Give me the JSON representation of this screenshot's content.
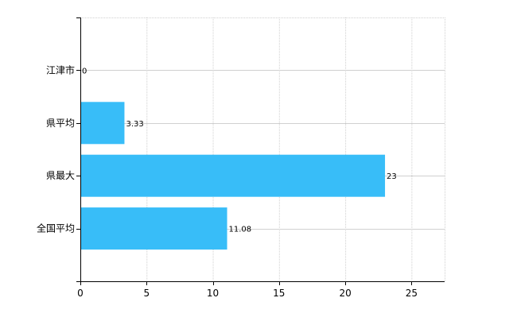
{
  "chart_data": {
    "type": "bar",
    "orientation": "horizontal",
    "categories": [
      "江津市",
      "県平均",
      "県最大",
      "全国平均"
    ],
    "values": [
      0,
      3.33,
      23,
      11.08
    ],
    "data_labels": [
      "0",
      "3.33",
      "23",
      "11.08"
    ],
    "title": "",
    "xlabel": "",
    "ylabel": "",
    "xlim": [
      0,
      27.5
    ],
    "x_ticks": [
      0,
      5,
      10,
      15,
      20,
      25
    ],
    "x_tick_labels": [
      "0",
      "5",
      "10",
      "15",
      "20",
      "25"
    ],
    "grid": true,
    "legend": "none",
    "bar_color": "#38BDF8",
    "grid_color": "#D0D0D0",
    "axis_color": "#000000"
  }
}
